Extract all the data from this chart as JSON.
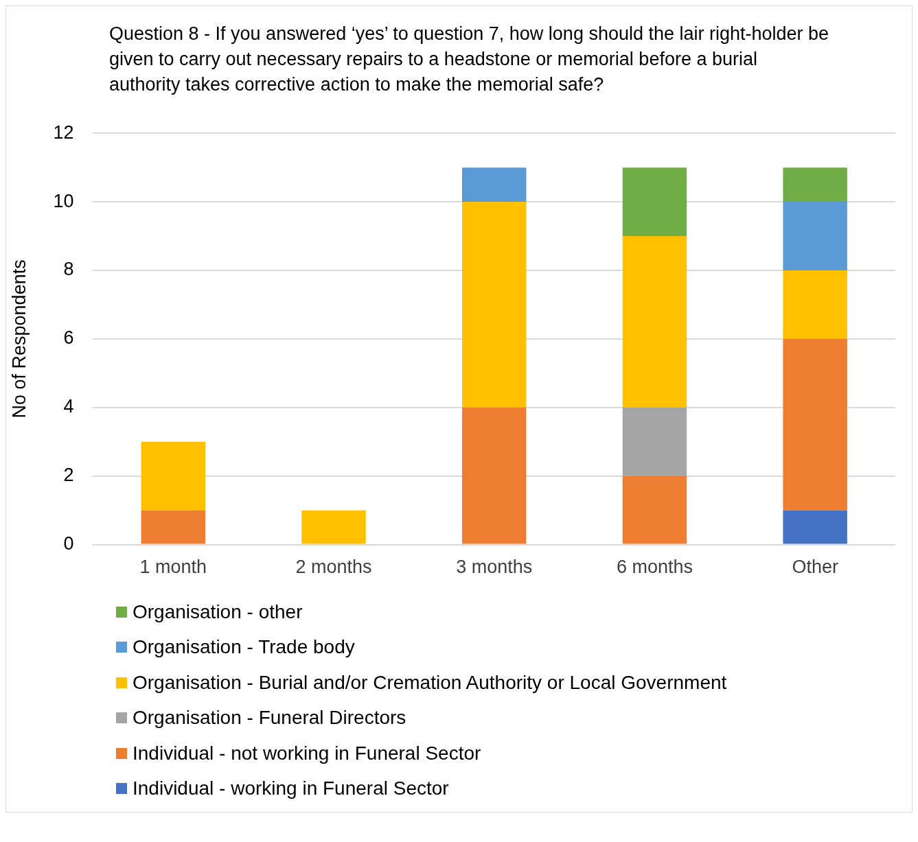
{
  "chart_data": {
    "type": "bar",
    "title": "Question 8 - If you answered ‘yes’ to question 7, how long should the lair right-holder be given to carry out necessary repairs to a headstone or memorial before a burial authority takes corrective action to make the memorial safe?",
    "ylabel": "No of Respondents",
    "categories": [
      "1 month",
      "2 months",
      "3 months",
      "6 months",
      "Other"
    ],
    "series": [
      {
        "name": "Individual - working in Funeral Sector",
        "color": "#4472c4",
        "values": [
          0,
          0,
          0,
          0,
          1
        ]
      },
      {
        "name": "Individual - not working in Funeral Sector",
        "color": "#ed7d31",
        "values": [
          1,
          0,
          4,
          2,
          5
        ]
      },
      {
        "name": "Organisation - Funeral Directors",
        "color": "#a5a5a5",
        "values": [
          0,
          0,
          0,
          2,
          0
        ]
      },
      {
        "name": "Organisation - Burial and/or Cremation Authority or Local Government",
        "color": "#ffc000",
        "values": [
          2,
          1,
          6,
          5,
          2
        ]
      },
      {
        "name": "Organisation - Trade body",
        "color": "#5b9bd5",
        "values": [
          0,
          0,
          1,
          0,
          2
        ]
      },
      {
        "name": "Organisation - other",
        "color": "#70ad47",
        "values": [
          0,
          0,
          0,
          2,
          1
        ]
      }
    ],
    "stacked": true,
    "ylim": [
      0,
      12
    ],
    "yticks": [
      0,
      2,
      4,
      6,
      8,
      10,
      12
    ],
    "grid": "y",
    "legend": "bottom"
  }
}
